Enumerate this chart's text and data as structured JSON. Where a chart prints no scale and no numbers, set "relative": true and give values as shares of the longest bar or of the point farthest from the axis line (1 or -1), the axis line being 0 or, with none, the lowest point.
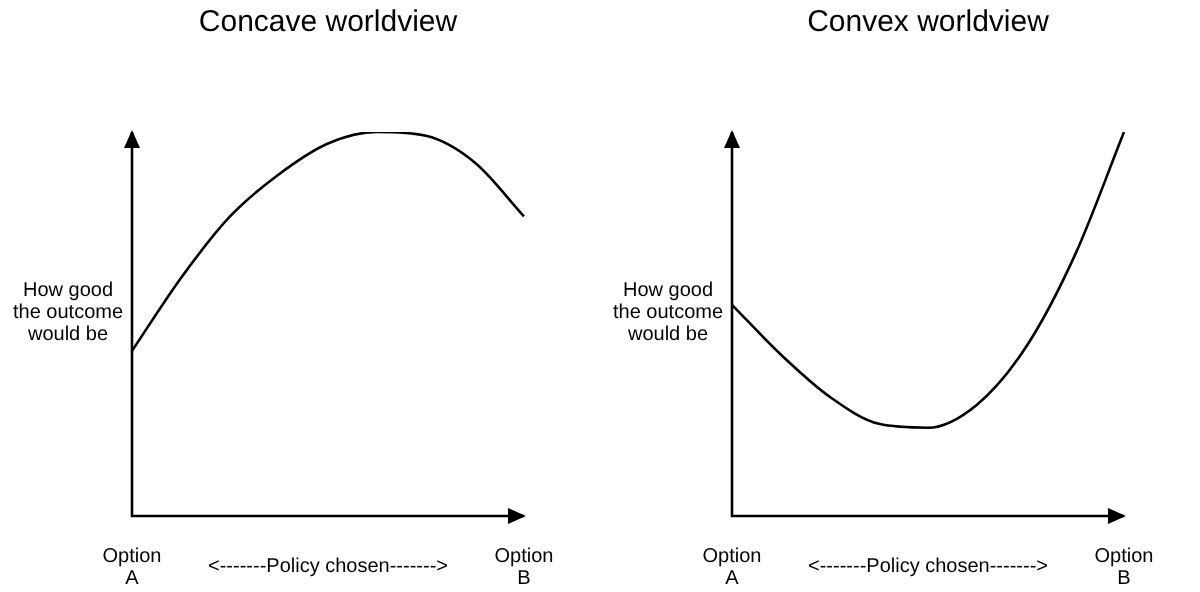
{
  "chart_data": [
    {
      "type": "line",
      "title": "Concave worldview",
      "xlabel": "<-------Policy chosen------->",
      "ylabel": "How good the outcome would be",
      "relative": true,
      "marker": "none",
      "color": "#000000",
      "categories": [
        "Option A",
        null,
        null,
        null,
        null,
        null,
        null,
        null,
        "Option B"
      ],
      "values": [
        0.43,
        0.62,
        0.78,
        0.89,
        0.97,
        1,
        0.99,
        0.92,
        0.78
      ]
    },
    {
      "type": "line",
      "title": "Convex worldview",
      "xlabel": "<-------Policy chosen------->",
      "ylabel": "How good the outcome would be",
      "relative": true,
      "marker": "none",
      "color": "#000000",
      "categories": [
        "Option A",
        null,
        null,
        null,
        null,
        null,
        null,
        null,
        "Option B"
      ],
      "values": [
        0.55,
        0.42,
        0.31,
        0.24,
        0.23,
        0.29,
        0.44,
        0.68,
        1
      ]
    }
  ]
}
